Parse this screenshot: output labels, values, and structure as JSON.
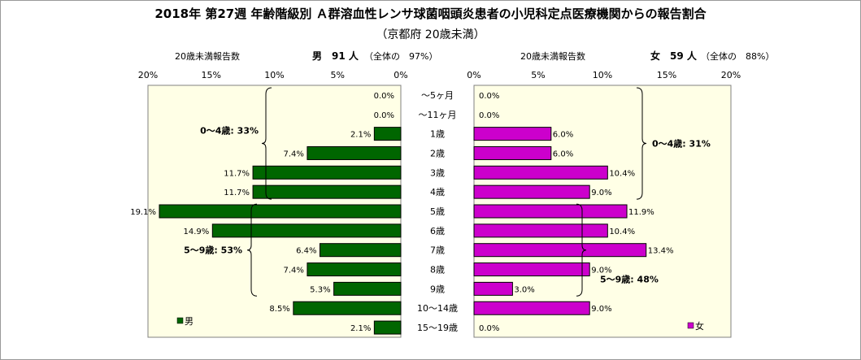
{
  "title": "2018年 第27週 年齢階級別 Ａ群溶血性レンサ球菌咽頭炎患者の小児科定点医療機関からの報告割合",
  "subtitle": "（京都府 20歳未満）",
  "male_header": {
    "count_label": "20歳未満報告数",
    "sex_count": "男　91 人",
    "share": "（全体の　97%）"
  },
  "female_header": {
    "count_label": "20歳未満報告数",
    "sex_count": "女　59 人",
    "share": "（全体の　88%）"
  },
  "colors": {
    "male": "#006600",
    "female": "#cc00cc",
    "panel": "#ffffe6"
  },
  "chart_data": {
    "type": "bar",
    "orientation": "horizontal-butterfly",
    "categories": [
      "～5ヶ月",
      "～11ヶ月",
      "1歳",
      "2歳",
      "3歳",
      "4歳",
      "5歳",
      "6歳",
      "7歳",
      "8歳",
      "9歳",
      "10～14歳",
      "15～19歳"
    ],
    "series": [
      {
        "name": "男",
        "values": [
          0.0,
          0.0,
          2.1,
          7.4,
          11.7,
          11.7,
          19.1,
          14.9,
          6.4,
          7.4,
          5.3,
          8.5,
          2.1
        ]
      },
      {
        "name": "女",
        "values": [
          0.0,
          0.0,
          6.0,
          6.0,
          10.4,
          9.0,
          11.9,
          10.4,
          13.4,
          9.0,
          3.0,
          9.0,
          0.0
        ]
      }
    ],
    "xlim": [
      0,
      20
    ],
    "male_ticks": [
      "20%",
      "15%",
      "10%",
      "5%",
      "0%"
    ],
    "female_ticks": [
      "0%",
      "5%",
      "10%",
      "15%",
      "20%"
    ],
    "annotations": {
      "male_0_4": "0～4歳: 33%",
      "male_5_9": "5～9歳: 53%",
      "female_0_4": "0～4歳: 31%",
      "female_5_9": "5～9歳: 48%"
    }
  }
}
